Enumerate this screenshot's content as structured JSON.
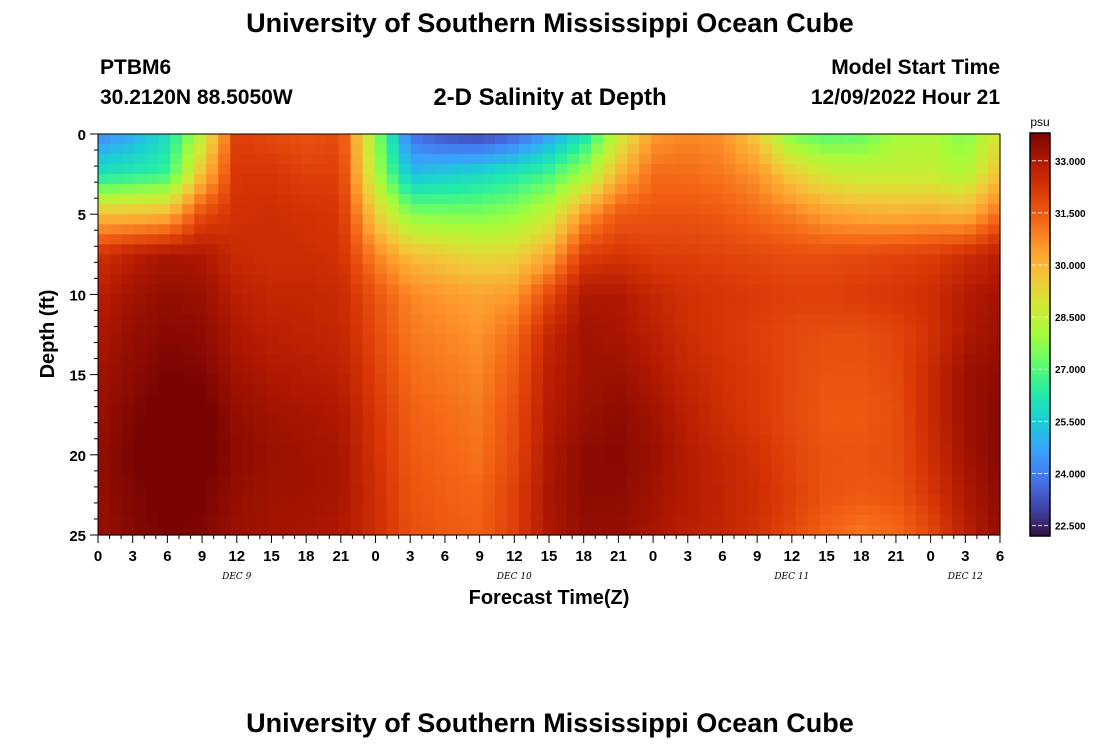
{
  "header": {
    "title": "University of Southern Mississippi Ocean Cube",
    "station_id": "PTBM6",
    "station_coords": "30.2120N  88.5050W",
    "plot_title": "2-D Salinity at Depth",
    "start_label": "Model Start Time",
    "start_value": "12/09/2022 Hour 21"
  },
  "footer": {
    "title": "University of Southern Mississippi Ocean Cube"
  },
  "chart_data": {
    "type": "heatmap",
    "title": "2-D Salinity at Depth",
    "xlabel": "Forecast Time(Z)",
    "ylabel": "Depth (ft)",
    "colorbar_unit": "psu",
    "x_ticks": [
      "0",
      "3",
      "6",
      "9",
      "12",
      "15",
      "18",
      "21",
      "0",
      "3",
      "6",
      "9",
      "12",
      "15",
      "18",
      "21",
      "0",
      "3",
      "6",
      "9",
      "12",
      "15",
      "18",
      "21",
      "0",
      "3",
      "6"
    ],
    "x_range_hours": [
      0,
      78
    ],
    "x_day_labels": [
      {
        "label": "DEC 9",
        "hour": 12
      },
      {
        "label": "DEC 10",
        "hour": 36
      },
      {
        "label": "DEC 11",
        "hour": 60
      },
      {
        "label": "DEC 12",
        "hour": 75
      }
    ],
    "y_ticks": [
      0,
      5,
      10,
      15,
      20,
      25
    ],
    "y_range": [
      0,
      25
    ],
    "y_inverted": true,
    "colorbar_ticks": [
      "33.000",
      "31.500",
      "30.000",
      "28.500",
      "27.000",
      "25.500",
      "24.000",
      "22.500"
    ],
    "colorbar_range": [
      22.2,
      33.8
    ],
    "colormap": [
      "#30123b",
      "#4145ab",
      "#4675ed",
      "#39a2fc",
      "#1bcfd4",
      "#24eca6",
      "#61fc6c",
      "#a4fc3b",
      "#d1e834",
      "#f3c63a",
      "#fe9b2d",
      "#f36315",
      "#d93806",
      "#b11901",
      "#7a0402"
    ],
    "grid": false,
    "rows": [
      {
        "depth": 0,
        "salinity": [
          24.2,
          24.8,
          25.9,
          28.5,
          32.0,
          31.8,
          31.6,
          31.8,
          27.8,
          23.8,
          23.2,
          23.0,
          23.5,
          24.6,
          26.0,
          28.6,
          30.5,
          30.8,
          30.6,
          29.5,
          27.5,
          27.0,
          27.2,
          28.0,
          28.2,
          27.5,
          29.0
        ]
      },
      {
        "depth": 2.5,
        "salinity": [
          26.0,
          26.3,
          26.6,
          29.8,
          32.2,
          32.2,
          32.0,
          32.0,
          28.2,
          25.2,
          25.5,
          25.8,
          26.2,
          26.8,
          28.0,
          30.0,
          31.2,
          31.2,
          31.0,
          30.6,
          29.5,
          28.8,
          28.6,
          28.6,
          28.6,
          28.2,
          29.8
        ]
      },
      {
        "depth": 5,
        "salinity": [
          29.8,
          29.8,
          30.0,
          31.8,
          32.3,
          32.4,
          32.3,
          32.2,
          29.5,
          27.6,
          27.5,
          27.5,
          27.8,
          28.6,
          30.5,
          31.5,
          31.6,
          31.6,
          31.5,
          31.2,
          30.9,
          30.4,
          30.2,
          30.1,
          30.2,
          30.0,
          31.2
        ]
      },
      {
        "depth": 7.5,
        "salinity": [
          32.3,
          32.8,
          33.1,
          33.0,
          32.5,
          32.4,
          32.4,
          32.3,
          30.8,
          29.8,
          29.5,
          29.2,
          29.3,
          30.2,
          32.0,
          32.2,
          32.0,
          32.0,
          31.9,
          31.8,
          31.7,
          31.7,
          31.8,
          31.9,
          32.0,
          32.4,
          32.8
        ]
      },
      {
        "depth": 10,
        "salinity": [
          32.8,
          33.2,
          33.4,
          33.3,
          32.8,
          32.6,
          32.6,
          32.5,
          31.6,
          30.8,
          30.5,
          30.3,
          30.5,
          31.8,
          33.0,
          33.0,
          32.6,
          32.3,
          32.2,
          32.1,
          32.0,
          32.0,
          32.1,
          32.2,
          32.4,
          32.9,
          33.2
        ]
      },
      {
        "depth": 12.5,
        "salinity": [
          33.0,
          33.4,
          33.6,
          33.5,
          33.0,
          32.8,
          32.7,
          32.6,
          31.8,
          31.0,
          30.8,
          30.6,
          31.2,
          32.6,
          33.2,
          33.1,
          32.8,
          32.4,
          32.2,
          32.0,
          31.8,
          31.7,
          31.7,
          31.9,
          32.3,
          33.0,
          33.3
        ]
      },
      {
        "depth": 15,
        "salinity": [
          33.2,
          33.5,
          33.8,
          33.7,
          33.2,
          33.0,
          32.9,
          32.8,
          32.0,
          31.2,
          31.0,
          30.8,
          31.5,
          32.8,
          33.2,
          33.3,
          33.0,
          32.6,
          32.3,
          32.1,
          31.8,
          31.6,
          31.6,
          31.8,
          32.5,
          33.3,
          33.5
        ]
      },
      {
        "depth": 17.5,
        "salinity": [
          33.3,
          33.7,
          34.0,
          34.0,
          33.4,
          33.2,
          33.1,
          33.0,
          32.2,
          31.4,
          31.2,
          31.0,
          31.7,
          32.9,
          33.3,
          33.5,
          33.2,
          32.8,
          32.4,
          32.1,
          31.8,
          31.5,
          31.5,
          31.7,
          32.5,
          33.3,
          33.6
        ]
      },
      {
        "depth": 20,
        "salinity": [
          33.4,
          33.8,
          34.0,
          34.0,
          33.5,
          33.3,
          33.2,
          33.1,
          32.3,
          31.5,
          31.3,
          31.1,
          31.8,
          33.0,
          33.5,
          33.6,
          33.3,
          32.9,
          32.6,
          32.3,
          31.9,
          31.6,
          31.6,
          31.7,
          32.4,
          33.2,
          33.6
        ]
      },
      {
        "depth": 22.5,
        "salinity": [
          33.4,
          33.7,
          33.9,
          33.8,
          33.4,
          33.2,
          33.2,
          33.1,
          32.4,
          31.6,
          31.4,
          31.3,
          32.0,
          33.1,
          33.5,
          33.5,
          33.2,
          32.9,
          32.7,
          32.4,
          32.0,
          31.6,
          31.5,
          31.6,
          32.2,
          33.0,
          33.5
        ]
      },
      {
        "depth": 25,
        "salinity": [
          33.3,
          33.6,
          33.8,
          33.7,
          33.3,
          33.2,
          33.1,
          33.0,
          32.4,
          31.7,
          31.5,
          31.4,
          32.0,
          33.0,
          33.4,
          33.4,
          33.1,
          32.8,
          32.6,
          32.3,
          31.8,
          31.3,
          31.0,
          31.2,
          31.8,
          32.8,
          33.4
        ]
      }
    ]
  }
}
